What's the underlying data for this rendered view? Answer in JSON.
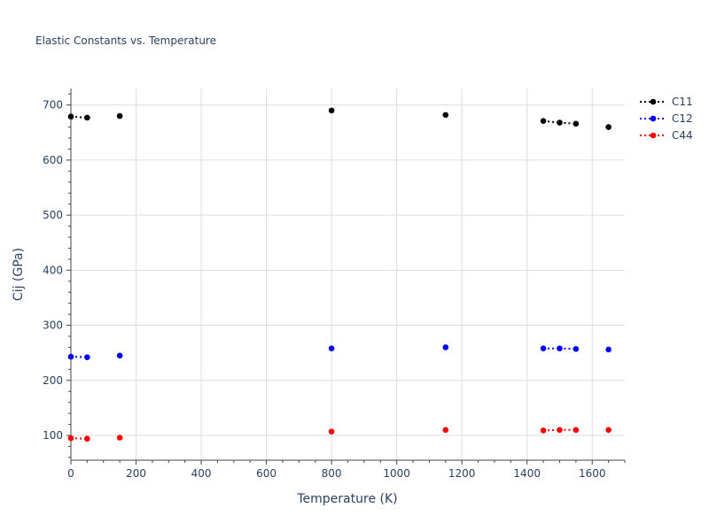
{
  "chart_data": {
    "type": "scatter",
    "title": "Elastic Constants vs. Temperature",
    "xlabel": "Temperature (K)",
    "ylabel": "Cij (GPa)",
    "xlim": [
      0,
      1700
    ],
    "ylim": [
      55,
      730
    ],
    "xticks": [
      0,
      200,
      400,
      600,
      800,
      1000,
      1200,
      1400,
      1600
    ],
    "yticks": [
      100,
      200,
      300,
      400,
      500,
      600,
      700
    ],
    "grid": true,
    "legend_position": "top-right",
    "series": [
      {
        "name": "C11",
        "color": "#000000",
        "x": [
          0,
          50,
          150,
          800,
          1150,
          1450,
          1500,
          1550,
          1650
        ],
        "y": [
          679,
          677,
          680,
          690,
          682,
          671,
          668,
          666,
          660
        ],
        "connected": [
          [
            0,
            1
          ],
          [
            5,
            6
          ],
          [
            6,
            7
          ]
        ]
      },
      {
        "name": "C12",
        "color": "#0000ff",
        "x": [
          0,
          50,
          150,
          800,
          1150,
          1450,
          1500,
          1550,
          1650
        ],
        "y": [
          243,
          242,
          245,
          258,
          260,
          258,
          258,
          257,
          256
        ],
        "connected": [
          [
            0,
            1
          ],
          [
            5,
            6
          ],
          [
            6,
            7
          ]
        ]
      },
      {
        "name": "C44",
        "color": "#ff0000",
        "x": [
          0,
          50,
          150,
          800,
          1150,
          1450,
          1500,
          1550,
          1650
        ],
        "y": [
          95,
          94,
          96,
          107,
          110,
          109,
          110,
          110,
          110
        ],
        "connected": [
          [
            0,
            1
          ],
          [
            5,
            6
          ],
          [
            6,
            7
          ]
        ]
      }
    ]
  }
}
